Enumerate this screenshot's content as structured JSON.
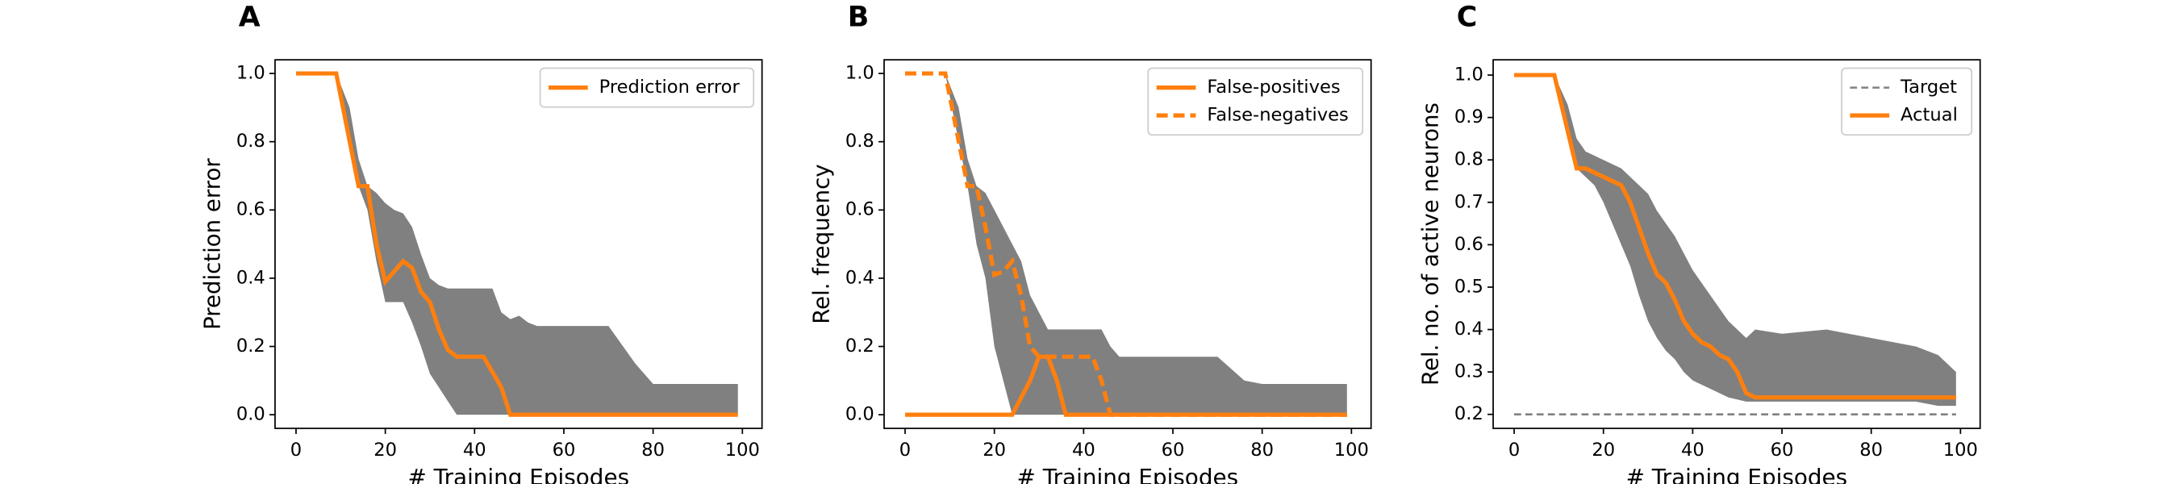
{
  "chart_data": [
    {
      "type": "line",
      "panel_label": "A",
      "ylabel": "Prediction error",
      "xlabel": "# Training Episodes",
      "xlim": [
        -4.7,
        104.4
      ],
      "ylim": [
        -0.04,
        1.04
      ],
      "xticks": [
        0,
        20,
        40,
        60,
        80,
        100
      ],
      "yticks": [
        {
          "value": 0,
          "label": "0.0"
        },
        0.2,
        0.4,
        0.6,
        0.8,
        {
          "value": 1,
          "label": "1.0"
        }
      ],
      "legend": "upper right",
      "band": {
        "color": "#808080",
        "x": [
          0,
          9,
          12,
          14,
          16,
          18,
          20,
          22,
          24,
          26,
          28,
          30,
          32,
          34,
          36,
          40,
          44,
          46,
          48,
          50,
          52,
          54,
          60,
          70,
          76,
          80,
          99
        ],
        "upper": [
          1,
          1,
          0.9,
          0.75,
          0.67,
          0.65,
          0.62,
          0.6,
          0.59,
          0.55,
          0.47,
          0.4,
          0.38,
          0.37,
          0.37,
          0.37,
          0.37,
          0.3,
          0.28,
          0.29,
          0.27,
          0.26,
          0.26,
          0.26,
          0.15,
          0.09,
          0.09
        ],
        "lower": [
          1,
          1,
          0.8,
          0.67,
          0.6,
          0.45,
          0.33,
          0.33,
          0.33,
          0.27,
          0.2,
          0.12,
          0.08,
          0.04,
          0,
          0,
          0,
          0,
          0,
          0,
          0,
          0,
          0,
          0,
          0,
          0,
          0
        ]
      },
      "series": [
        {
          "name": "Prediction error",
          "color": "#ff7f0e",
          "dash": "solid",
          "x": [
            0,
            9,
            14,
            16,
            18,
            20,
            22,
            24,
            26,
            28,
            30,
            32,
            34,
            36,
            42,
            46,
            48,
            99
          ],
          "values": [
            1,
            1,
            0.67,
            0.67,
            0.5,
            0.39,
            0.42,
            0.45,
            0.43,
            0.36,
            0.33,
            0.25,
            0.19,
            0.17,
            0.17,
            0.08,
            0,
            0
          ]
        }
      ]
    },
    {
      "type": "line",
      "panel_label": "B",
      "ylabel": "Rel. frequency",
      "xlabel": "# Training Episodes",
      "xlim": [
        -4.7,
        104.4
      ],
      "ylim": [
        -0.04,
        1.04
      ],
      "xticks": [
        0,
        20,
        40,
        60,
        80,
        100
      ],
      "yticks": [
        {
          "value": 0,
          "label": "0.0"
        },
        0.2,
        0.4,
        0.6,
        0.8,
        {
          "value": 1,
          "label": "1.0"
        }
      ],
      "legend": "upper right",
      "band": {
        "color": "#808080",
        "x": [
          0,
          9,
          12,
          14,
          16,
          18,
          20,
          22,
          24,
          26,
          28,
          30,
          32,
          34,
          36,
          40,
          44,
          46,
          48,
          50,
          52,
          54,
          60,
          70,
          76,
          80,
          99
        ],
        "upper": [
          1,
          1,
          0.9,
          0.75,
          0.67,
          0.65,
          0.6,
          0.55,
          0.5,
          0.45,
          0.35,
          0.3,
          0.25,
          0.25,
          0.25,
          0.25,
          0.25,
          0.2,
          0.17,
          0.17,
          0.17,
          0.17,
          0.17,
          0.17,
          0.1,
          0.09,
          0.09
        ],
        "lower": [
          1,
          1,
          0.8,
          0.67,
          0.5,
          0.4,
          0.2,
          0.1,
          0,
          0,
          0,
          0,
          0,
          0,
          0,
          0,
          0,
          0,
          0,
          0,
          0,
          0,
          0,
          0,
          0,
          0,
          0
        ]
      },
      "series": [
        {
          "name": "False-positives",
          "color": "#ff7f0e",
          "dash": "solid",
          "x": [
            0,
            24,
            26,
            28,
            30,
            32,
            34,
            36,
            99
          ],
          "values": [
            0,
            0,
            0.05,
            0.1,
            0.17,
            0.17,
            0.1,
            0,
            0
          ]
        },
        {
          "name": "False-negatives",
          "color": "#ff7f0e",
          "dash": "dashed",
          "x": [
            0,
            9,
            14,
            16,
            18,
            20,
            22,
            24,
            26,
            28,
            30,
            34,
            40,
            42,
            44,
            46,
            99
          ],
          "values": [
            1,
            1,
            0.67,
            0.67,
            0.55,
            0.41,
            0.42,
            0.45,
            0.35,
            0.2,
            0.17,
            0.17,
            0.17,
            0.17,
            0.1,
            0,
            0
          ]
        }
      ]
    },
    {
      "type": "line",
      "panel_label": "C",
      "ylabel": "Rel. no. of active neurons",
      "xlabel": "# Training Episodes",
      "xlim": [
        -4.7,
        104.4
      ],
      "ylim": [
        0.167,
        1.036
      ],
      "xticks": [
        0,
        20,
        40,
        60,
        80,
        100
      ],
      "yticks": [
        0.2,
        0.3,
        0.4,
        0.5,
        0.6,
        0.7,
        0.8,
        0.9,
        {
          "value": 1,
          "label": "1.0"
        }
      ],
      "legend": "upper right",
      "band": {
        "color": "#808080",
        "x": [
          0,
          9,
          12,
          14,
          16,
          18,
          20,
          22,
          24,
          26,
          28,
          30,
          32,
          34,
          36,
          38,
          40,
          44,
          48,
          52,
          54,
          60,
          70,
          80,
          90,
          95,
          99
        ],
        "upper": [
          1,
          1,
          0.93,
          0.85,
          0.82,
          0.81,
          0.8,
          0.79,
          0.78,
          0.76,
          0.74,
          0.72,
          0.68,
          0.65,
          0.62,
          0.58,
          0.54,
          0.48,
          0.42,
          0.38,
          0.4,
          0.39,
          0.4,
          0.38,
          0.36,
          0.34,
          0.3
        ],
        "lower": [
          1,
          1,
          0.85,
          0.78,
          0.76,
          0.74,
          0.7,
          0.65,
          0.6,
          0.55,
          0.48,
          0.42,
          0.38,
          0.35,
          0.33,
          0.3,
          0.28,
          0.26,
          0.24,
          0.23,
          0.23,
          0.23,
          0.23,
          0.23,
          0.23,
          0.22,
          0.22
        ]
      },
      "series": [
        {
          "name": "Target",
          "color": "#808080",
          "dash": "thin-dashed",
          "x": [
            0,
            99
          ],
          "values": [
            0.2,
            0.2
          ]
        },
        {
          "name": "Actual",
          "color": "#ff7f0e",
          "dash": "solid",
          "x": [
            0,
            9,
            14,
            16,
            18,
            20,
            22,
            24,
            26,
            28,
            30,
            32,
            34,
            36,
            38,
            40,
            42,
            44,
            46,
            48,
            50,
            52,
            54,
            99
          ],
          "values": [
            1,
            1,
            0.78,
            0.78,
            0.77,
            0.76,
            0.75,
            0.74,
            0.7,
            0.64,
            0.58,
            0.53,
            0.51,
            0.47,
            0.42,
            0.39,
            0.37,
            0.36,
            0.34,
            0.33,
            0.3,
            0.25,
            0.24,
            0.24
          ]
        }
      ]
    }
  ]
}
